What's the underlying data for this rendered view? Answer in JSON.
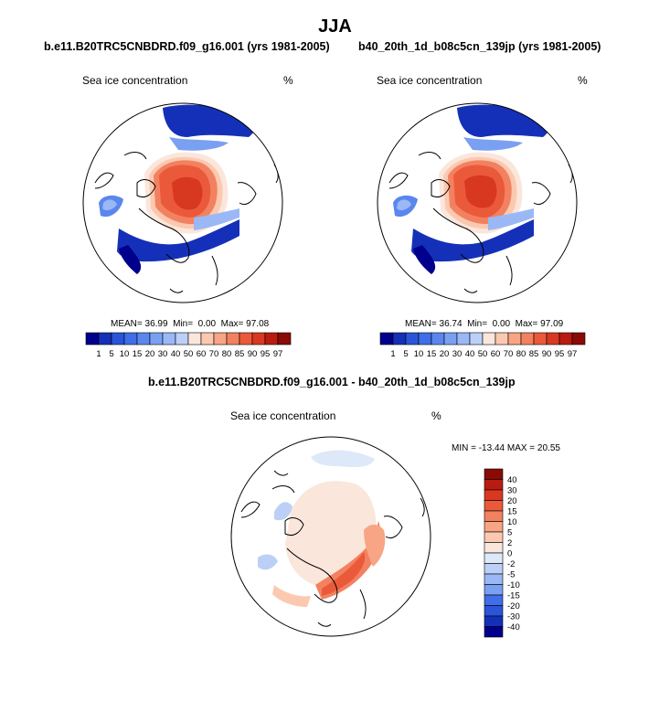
{
  "figure": {
    "title": "JJA"
  },
  "panels": [
    {
      "case_title": "b.e11.B20TRC5CNBDRD.f09_g16.001 (yrs 1981-2005)",
      "variable": "Sea ice concentration",
      "units": "%",
      "stats": {
        "mean_label": "MEAN=",
        "mean": "36.99",
        "min_label": "Min=",
        "min": "0.00",
        "max_label": "Max=",
        "max": "97.08"
      }
    },
    {
      "case_title": "b40_20th_1d_b08c5cn_139jp (yrs 1981-2005)",
      "variable": "Sea ice concentration",
      "units": "%",
      "stats": {
        "mean_label": "MEAN=",
        "mean": "36.74",
        "min_label": "Min=",
        "min": "0.00",
        "max_label": "Max=",
        "max": "97.09"
      }
    },
    {
      "case_title": "b.e11.B20TRC5CNBDRD.f09_g16.001 - b40_20th_1d_b08c5cn_139jp",
      "variable": "Sea ice concentration",
      "units": "%",
      "minmax": "MIN = -13.44 MAX =  20.55"
    }
  ],
  "chart_data": [
    {
      "type": "heatmap",
      "projection": "polar-stereographic",
      "title": "Sea ice concentration",
      "units": "%",
      "mean": 36.99,
      "min": 0.0,
      "max": 97.08,
      "colorbar": {
        "orientation": "horizontal",
        "levels": [
          "1",
          "5",
          "10",
          "15",
          "20",
          "30",
          "40",
          "50",
          "60",
          "70",
          "80",
          "85",
          "90",
          "95",
          "97"
        ],
        "colors": [
          "#00008c",
          "#1530b8",
          "#2a55d8",
          "#3f6ee8",
          "#5a86ee",
          "#7aa0f2",
          "#9ab8f5",
          "#bcd0f7",
          "#fbe6dc",
          "#fbc9b0",
          "#f7a584",
          "#f28160",
          "#ea5a3a",
          "#d93820",
          "#b81c10",
          "#8a0a05"
        ]
      }
    },
    {
      "type": "heatmap",
      "projection": "polar-stereographic",
      "title": "Sea ice concentration",
      "units": "%",
      "mean": 36.74,
      "min": 0.0,
      "max": 97.09,
      "colorbar": {
        "orientation": "horizontal",
        "levels": [
          "1",
          "5",
          "10",
          "15",
          "20",
          "30",
          "40",
          "50",
          "60",
          "70",
          "80",
          "85",
          "90",
          "95",
          "97"
        ],
        "colors": [
          "#00008c",
          "#1530b8",
          "#2a55d8",
          "#3f6ee8",
          "#5a86ee",
          "#7aa0f2",
          "#9ab8f5",
          "#bcd0f7",
          "#fbe6dc",
          "#fbc9b0",
          "#f7a584",
          "#f28160",
          "#ea5a3a",
          "#d93820",
          "#b81c10",
          "#8a0a05"
        ]
      }
    },
    {
      "type": "heatmap",
      "projection": "polar-stereographic",
      "title": "Sea ice concentration",
      "units": "%",
      "min": -13.44,
      "max": 20.55,
      "colorbar": {
        "orientation": "vertical",
        "levels": [
          "40",
          "30",
          "20",
          "15",
          "10",
          "5",
          "2",
          "0",
          "-2",
          "-5",
          "-10",
          "-15",
          "-20",
          "-30",
          "-40"
        ],
        "colors": [
          "#8a0a05",
          "#b81c10",
          "#d93820",
          "#ea5a3a",
          "#f28160",
          "#f7a584",
          "#fbc9b0",
          "#fbe6dc",
          "#dde8f8",
          "#bcd0f7",
          "#9ab8f5",
          "#7aa0f2",
          "#3f6ee8",
          "#2a55d8",
          "#1530b8",
          "#00008c"
        ]
      }
    }
  ]
}
